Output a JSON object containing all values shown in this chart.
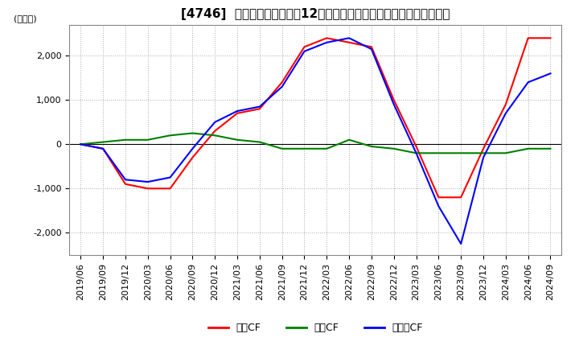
{
  "title": "[4746]  キャッシュフローの12か月移動合計の対前年同期増減額の推移",
  "ylabel": "(百万円)",
  "ylim": [
    -2500,
    2700
  ],
  "yticks": [
    -2000,
    -1000,
    0,
    1000,
    2000
  ],
  "legend_labels": [
    "営業CF",
    "投資CF",
    "フリーCF"
  ],
  "legend_colors": [
    "#ff0000",
    "#008000",
    "#0000ff"
  ],
  "x_labels": [
    "2019/06",
    "2019/09",
    "2019/12",
    "2020/03",
    "2020/06",
    "2020/09",
    "2020/12",
    "2021/03",
    "2021/06",
    "2021/09",
    "2021/12",
    "2022/03",
    "2022/06",
    "2022/09",
    "2022/12",
    "2023/03",
    "2023/06",
    "2023/09",
    "2023/12",
    "2024/03",
    "2024/06",
    "2024/09"
  ],
  "operating_cf": [
    0,
    -100,
    -900,
    -1000,
    -1000,
    -300,
    300,
    700,
    800,
    1400,
    2200,
    2400,
    2300,
    2200,
    1000,
    -50,
    -1200,
    -1200,
    -100,
    900,
    2400,
    2400
  ],
  "investing_cf": [
    0,
    50,
    100,
    100,
    200,
    250,
    200,
    100,
    50,
    -100,
    -100,
    -100,
    100,
    -50,
    -100,
    -200,
    -200,
    -200,
    -200,
    -200,
    -100,
    -100
  ],
  "free_cf": [
    0,
    -100,
    -800,
    -850,
    -750,
    -100,
    500,
    750,
    850,
    1300,
    2100,
    2300,
    2400,
    2150,
    900,
    -200,
    -1400,
    -2250,
    -300,
    700,
    1400,
    1600
  ],
  "background_color": "#ffffff",
  "grid_color": "#aaaaaa",
  "title_fontsize": 11,
  "tick_fontsize": 8
}
